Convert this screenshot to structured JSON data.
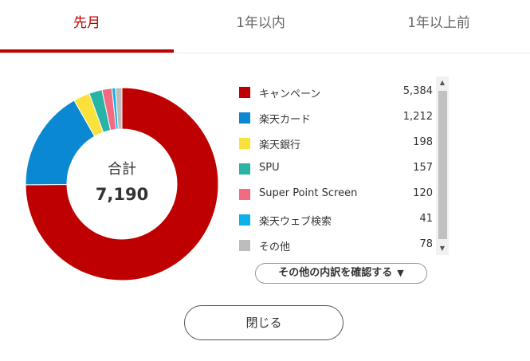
{
  "tabs": [
    {
      "label": "先月",
      "active": true
    },
    {
      "label": "1年以内",
      "active": false
    },
    {
      "label": "1年以上前",
      "active": false
    }
  ],
  "summary": {
    "total_label": "合計",
    "total_value": "7,190"
  },
  "legend": [
    {
      "name": "キャンペーン",
      "value": "5,384",
      "amount": 5384,
      "color": "#bf0000"
    },
    {
      "name": "楽天カード",
      "value": "1,212",
      "amount": 1212,
      "color": "#0a88d1"
    },
    {
      "name": "楽天銀行",
      "value": "198",
      "amount": 198,
      "color": "#fae13b"
    },
    {
      "name": "SPU",
      "value": "157",
      "amount": 157,
      "color": "#27b3a5"
    },
    {
      "name": "Super Point Screen",
      "value": "120",
      "amount": 120,
      "color": "#f26b81"
    },
    {
      "name": "楽天ウェブ検索",
      "value": "41",
      "amount": 41,
      "color": "#0bb0ec"
    },
    {
      "name": "その他",
      "value": "78",
      "amount": 78,
      "color": "#bdbdbd"
    }
  ],
  "buttons": {
    "details_label": "その他の内訳を確認する",
    "close_label": "閉じる"
  },
  "icons": {
    "caret": "triangle-down-icon",
    "scroll_up": "scroll-up-arrow-icon",
    "scroll_down": "scroll-down-arrow-icon"
  }
}
